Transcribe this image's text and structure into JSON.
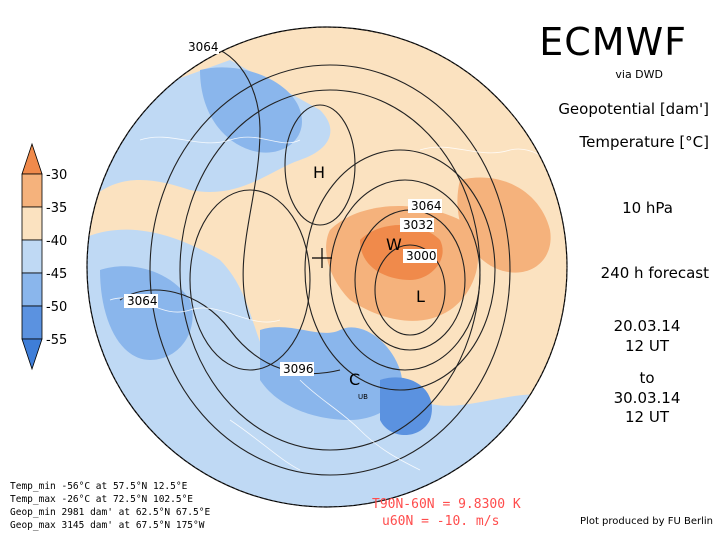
{
  "header": {
    "brand": "ECMWF",
    "source": "via DWD",
    "var1": "Geopotential [dam']",
    "var2": "Temperature [°C]",
    "level": "10 hPa",
    "forecast": "240 h forecast",
    "date_start": "20.03.14",
    "time_start": "12 UT",
    "to": "to",
    "date_end": "30.03.14",
    "time_end": "12 UT"
  },
  "legend": {
    "ticks": [
      "-30",
      "-35",
      "-40",
      "-45",
      "-50",
      "-55"
    ],
    "colors": [
      "#f08a4b",
      "#f5b27c",
      "#fbe2c0",
      "#bfd9f4",
      "#8ab6ec",
      "#5b92e0"
    ]
  },
  "map": {
    "contour_labels": [
      "3064",
      "3064",
      "3032",
      "3000",
      "3064",
      "3096"
    ],
    "markers": [
      "H",
      "W",
      "L",
      "C"
    ],
    "small_text": "UB"
  },
  "stats": {
    "temp_min": "Temp_min  -56°C at 57.5°N  12.5°E",
    "temp_max": "Temp_max  -26°C at 72.5°N 102.5°E",
    "geop_min": "Geop_min 2981 dam' at 62.5°N  67.5°E",
    "geop_max": "Geop_max 3145 dam' at 67.5°N  175°W"
  },
  "bottom": {
    "t_line": "T90N-60N = 9.8300 K",
    "u_line": "u60N = -10. m/s",
    "credit": "Plot produced by FU Berlin"
  }
}
